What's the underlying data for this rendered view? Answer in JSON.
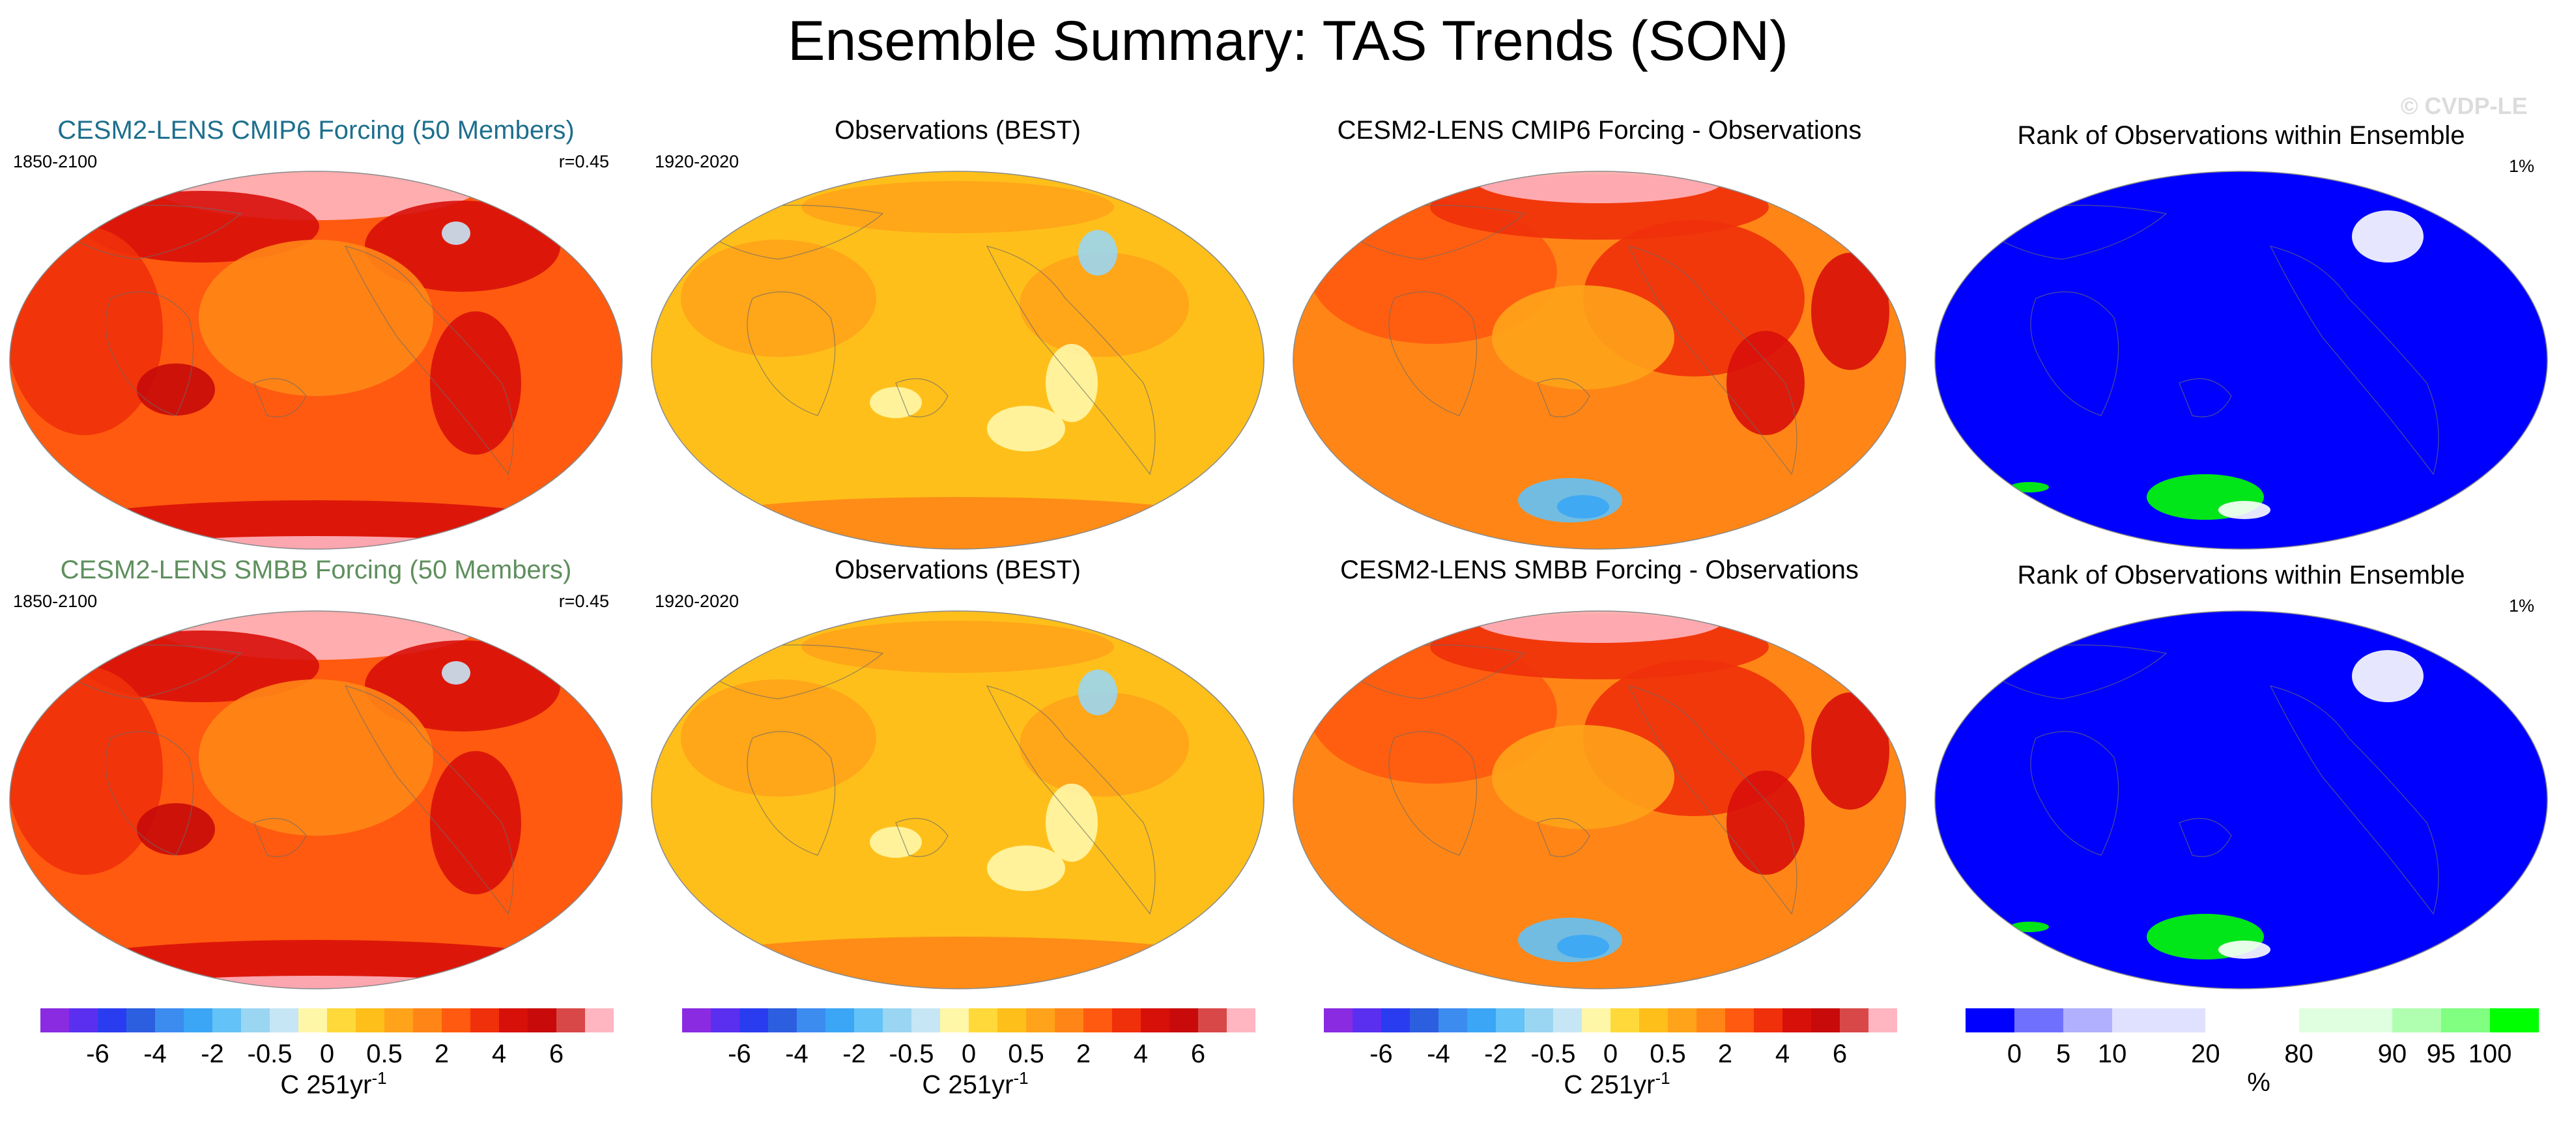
{
  "figure_title": "Ensemble Summary: TAS Trends (SON)",
  "watermark": "© CVDP-LE",
  "colors": {
    "title_cmip6": "#1e6f8e",
    "title_smbb": "#5e8f5e",
    "title_default": "#000000"
  },
  "chart_data": [
    {
      "type": "heatmap",
      "title": "CESM2-LENS CMIP6 Forcing (50 Members)",
      "period": "1850-2100",
      "stat": "r=0.45",
      "variable": "TAS trend",
      "units": "C 251yr-1"
    },
    {
      "type": "heatmap",
      "title": "Observations (BEST)",
      "period": "1920-2020",
      "stat": "",
      "variable": "TAS trend",
      "units": "C 251yr-1"
    },
    {
      "type": "heatmap",
      "title": "CESM2-LENS CMIP6 Forcing - Observations",
      "period": "",
      "stat": "",
      "variable": "TAS trend difference",
      "units": "C 251yr-1"
    },
    {
      "type": "heatmap",
      "title": "Rank of Observations within Ensemble",
      "period": "",
      "stat": "1%",
      "variable": "rank",
      "units": "%"
    },
    {
      "type": "heatmap",
      "title": "CESM2-LENS SMBB Forcing (50 Members)",
      "period": "1850-2100",
      "stat": "r=0.45",
      "variable": "TAS trend",
      "units": "C 251yr-1"
    },
    {
      "type": "heatmap",
      "title": "Observations (BEST)",
      "period": "1920-2020",
      "stat": "",
      "variable": "TAS trend",
      "units": "C 251yr-1"
    },
    {
      "type": "heatmap",
      "title": "CESM2-LENS SMBB Forcing - Observations",
      "period": "",
      "stat": "",
      "variable": "TAS trend difference",
      "units": "C 251yr-1"
    },
    {
      "type": "heatmap",
      "title": "Rank of Observations within Ensemble",
      "period": "",
      "stat": "1%",
      "variable": "rank",
      "units": "%"
    }
  ],
  "colorbar_trend": {
    "colors": [
      "#8a2be2",
      "#5b2ff0",
      "#2a3cf0",
      "#2c5fe0",
      "#3c8cf0",
      "#3aa6f5",
      "#63c2f7",
      "#9ad6f2",
      "#c6e6f6",
      "#fff7a8",
      "#ffd93a",
      "#ffbf1a",
      "#ffa31a",
      "#ff8616",
      "#ff5a0f",
      "#f0300a",
      "#d8100a",
      "#c80a0a",
      "#d94848",
      "#ffb6c1"
    ],
    "ticks": [
      "-6",
      "-4",
      "-2",
      "-0.5",
      "0",
      "0.5",
      "2",
      "4",
      "6"
    ],
    "units": "C 251yr",
    "units_exp": "-1"
  },
  "colorbar_rank": {
    "colors": [
      "#0000ff",
      "#7070ff",
      "#b0b0ff",
      "#e0e0ff",
      "#ffffff",
      "#e0ffe0",
      "#b0ffb0",
      "#80ff80",
      "#00ff00"
    ],
    "ticks": [
      "0",
      "5",
      "10",
      "20",
      "80",
      "90",
      "95",
      "100"
    ],
    "units": "%"
  }
}
